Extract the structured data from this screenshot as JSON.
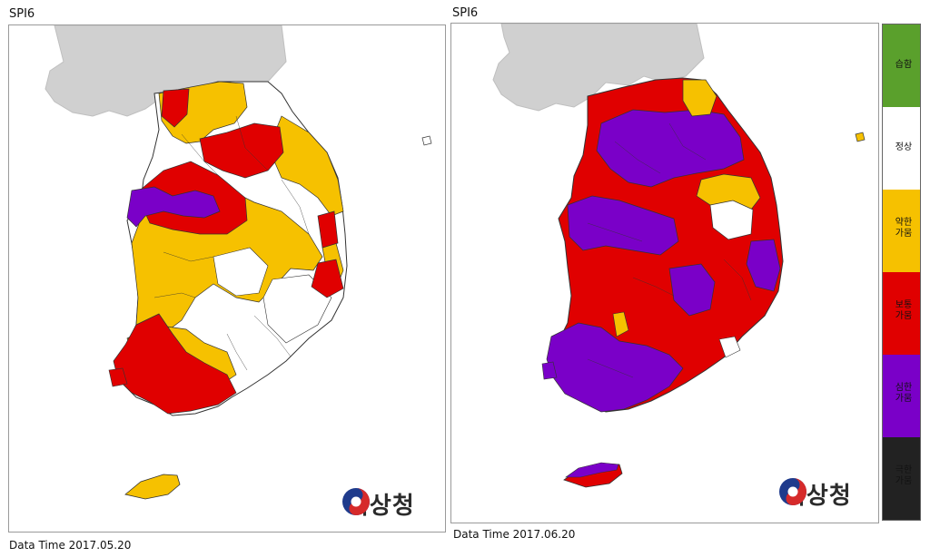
{
  "panels": [
    {
      "id": "left",
      "title": "SPI6",
      "datetime": "Data Time 2017.05.20",
      "logo_text": "기상청"
    },
    {
      "id": "right",
      "title": "SPI6",
      "datetime": "Data Time 2017.06.20",
      "logo_text": "기상청"
    }
  ],
  "legend": {
    "items": [
      {
        "label": "습함",
        "color": "#5aa02c"
      },
      {
        "label": "정상",
        "color": "#ffffff"
      },
      {
        "label": "약한 가뭄",
        "color": "#f6c100"
      },
      {
        "label": "보통 가뭄",
        "color": "#e00000"
      },
      {
        "label": "심한 가뭄",
        "color": "#7a00c8"
      },
      {
        "label": "극한 가뭄",
        "color": "#222222"
      }
    ]
  },
  "colors": {
    "land_neighbor": "#d0d0d0",
    "border": "#333333"
  }
}
